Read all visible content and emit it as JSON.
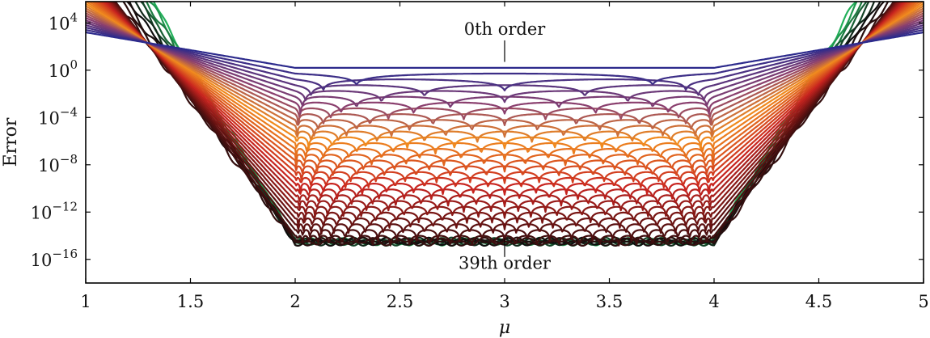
{
  "chart_data": {
    "type": "line",
    "xlabel": "μ",
    "ylabel": "Error",
    "xlim": [
      1,
      5
    ],
    "ylim_log10": [
      -18,
      5.8
    ],
    "y_scale": "log",
    "grid": false,
    "x_ticks": [
      1,
      1.5,
      2,
      2.5,
      3,
      3.5,
      4,
      4.5,
      5
    ],
    "x_tick_labels": [
      "1",
      "1.5",
      "2",
      "2.5",
      "3",
      "3.5",
      "4",
      "4.5",
      "5"
    ],
    "y_ticks_log10": [
      4,
      0,
      -4,
      -8,
      -12,
      -16
    ],
    "y_tick_labels": [
      {
        "base": "10",
        "exp": "4"
      },
      {
        "base": "10",
        "exp": "0"
      },
      {
        "base": "10",
        "exp": "−4"
      },
      {
        "base": "10",
        "exp": "−8"
      },
      {
        "base": "10",
        "exp": "−12"
      },
      {
        "base": "10",
        "exp": "−16"
      }
    ],
    "annotations": {
      "top": {
        "text": "0th order",
        "x": 3,
        "y_log10": 3.0
      },
      "bottom": {
        "text": "39th order",
        "x": 3,
        "y_log10": -16.8
      }
    },
    "marker_line_x": 3,
    "series_count": 40,
    "series_order_min": 0,
    "series_order_max": 39,
    "colors": {
      "order_0": "#2c2a8c",
      "order_6": "#8a3f6e",
      "order_12": "#f08a1e",
      "order_20": "#c8241f",
      "order_27": "#5a1010",
      "order_33": "#0d0d0d",
      "order_39": "#22b05a"
    },
    "model": {
      "interval": [
        2,
        4
      ],
      "error_floor_log10": -14.5,
      "order0_level_log10": 0.2,
      "order_decrease_log10_per_order": 0.49,
      "edge_slope_min": 3,
      "edge_slope_max": 30
    }
  }
}
